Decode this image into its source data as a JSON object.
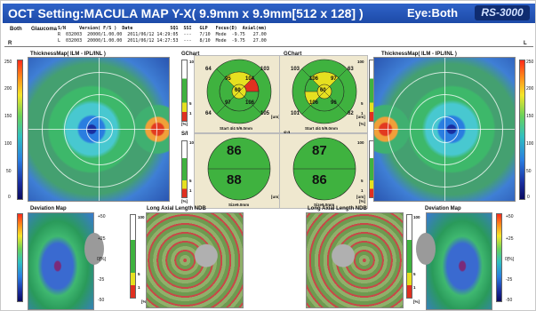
{
  "window": {
    "title": "OCT Setting:MACULA MAP Y-X( 9.9mm x 9.9mm[512 x 128] )",
    "eye_label": "Eye:Both",
    "logo": "RS-3000"
  },
  "info": {
    "label_both": "Both",
    "label_glaucoma": "Glaucoma",
    "header": "S/N     Version( F/S )  Date              SQ1  SSI   GLP   Focus(D)  Axial(mm)",
    "row_r": "R  032003  20000/1.00.00  2011/06/12 14:29:05  ---   7/10  Mode  -9.75   27.00",
    "row_l": "L  032003  20000/1.00.00  2011/06/12 14:27:53  ---   8/10  Mode  -9.75   27.00",
    "marker_r": "R",
    "marker_l": "L"
  },
  "left": {
    "thickness_title": "ThicknessMap( ILM - IPL/INL )",
    "scale_labels": [
      "250",
      "200",
      "150",
      "100",
      "50",
      "0"
    ],
    "gchart_title": "GChart",
    "gchart_values": {
      "sup_outer_l": "64",
      "sup_outer_r": "103",
      "mid_top_l": "95",
      "mid_top_r": "104",
      "center": "69",
      "mid_bot_l": "97",
      "mid_bot_r": "106",
      "inf_outer_l": "64",
      "inf_outer_r": "105"
    },
    "gchart_footer": "Start 4/4 5/9.0mm",
    "gchart_scale_labels": [
      "100",
      "5",
      "1",
      "[%]"
    ],
    "gchart_unit": "[um]",
    "si_title": "S/I",
    "si_top": "86",
    "si_bottom": "88",
    "si_footer": "Size9.0mm",
    "si_scale_labels": [
      "100",
      "5",
      "1",
      "[%]"
    ],
    "si_unit": "[um]",
    "deviation_title": "Deviation Map",
    "lal_title": "Long Axial Length NDB",
    "dev_scale_labels": [
      "+50",
      "+25",
      "0[%]",
      "-25",
      "-50"
    ],
    "lal_scale_labels": [
      "100",
      "5",
      "1",
      "[%]"
    ]
  },
  "right": {
    "thickness_title": "ThicknessMap( ILM - IPL/INL )",
    "scale_labels": [
      "250",
      "200",
      "150",
      "100",
      "50",
      "0"
    ],
    "gchart_title": "GChart",
    "gchart_values": {
      "sup_outer_l": "103",
      "sup_outer_r": "63",
      "mid_top_l": "106",
      "mid_top_r": "97",
      "center": "60",
      "mid_bot_l": "106",
      "mid_bot_r": "96",
      "inf_outer_l": "101",
      "inf_outer_r": "62"
    },
    "gchart_footer": "Start 4/4 5/9.0mm",
    "gchart_scale_labels": [
      "100",
      "5",
      "1",
      "[%]"
    ],
    "gchart_unit": "[um]",
    "si_title": "S/I",
    "si_top": "87",
    "si_bottom": "86",
    "si_footer": "Size9.0mm",
    "si_scale_labels": [
      "100",
      "5",
      "1",
      "[%]"
    ],
    "si_unit": "[um]",
    "deviation_title": "Deviation Map",
    "lal_title": "Long Axial Length NDB",
    "dev_scale_labels": [
      "+50",
      "+25",
      "0[%]",
      "-25",
      "-50"
    ],
    "lal_scale_labels": [
      "100",
      "5",
      "1",
      "[%]"
    ]
  },
  "colors": {
    "title_bar": "#2f63c8",
    "chart_green": "#3fb23f",
    "chart_yellow": "#e6e020",
    "chart_red": "#e03020",
    "panel_beige": "#efe8cf"
  }
}
